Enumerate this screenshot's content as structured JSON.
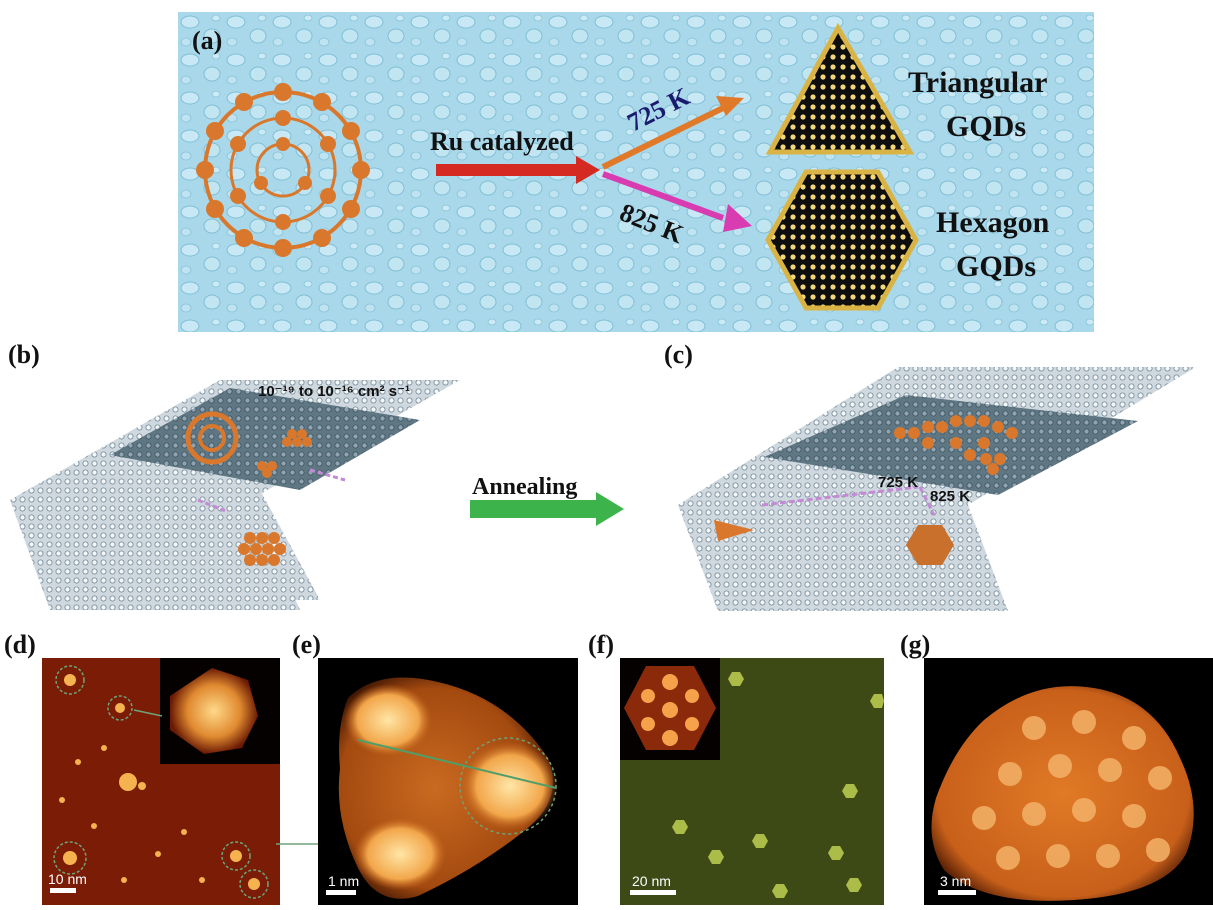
{
  "panel_a": {
    "letter": "(a)",
    "ru_label": "Ru catalyzed",
    "temp_low": "725 K",
    "temp_high": "825 K",
    "product_1_line1": "Triangular",
    "product_1_line2": "GQDs",
    "product_2_line1": "Hexagon",
    "product_2_line2": "GQDs"
  },
  "panel_b": {
    "letter": "(b)",
    "diffusion_label": "10⁻¹⁹ to 10⁻¹⁶ cm² s⁻¹"
  },
  "annealing_label": "Annealing",
  "panel_c": {
    "letter": "(c)",
    "temp_low": "725 K",
    "temp_high": "825 K"
  },
  "panel_d": {
    "letter": "(d)",
    "scale": "10 nm"
  },
  "panel_e": {
    "letter": "(e)",
    "scale": "1 nm"
  },
  "panel_f": {
    "letter": "(f)",
    "scale": "20 nm"
  },
  "panel_g": {
    "letter": "(g)",
    "scale": "3 nm"
  },
  "colors": {
    "water_bg": "#a9d8ea",
    "fullerene": "#d9782c",
    "red_arrow": "#d42a22",
    "orange_arrow": "#e07a2a",
    "magenta_arrow": "#d93bb0",
    "green_arrow": "#3cb44b",
    "gqd_border": "#d9b445",
    "stm_dark": "#1a0500",
    "stm_bright": "#f7c36a",
    "stm_green": "#3d4a16"
  }
}
